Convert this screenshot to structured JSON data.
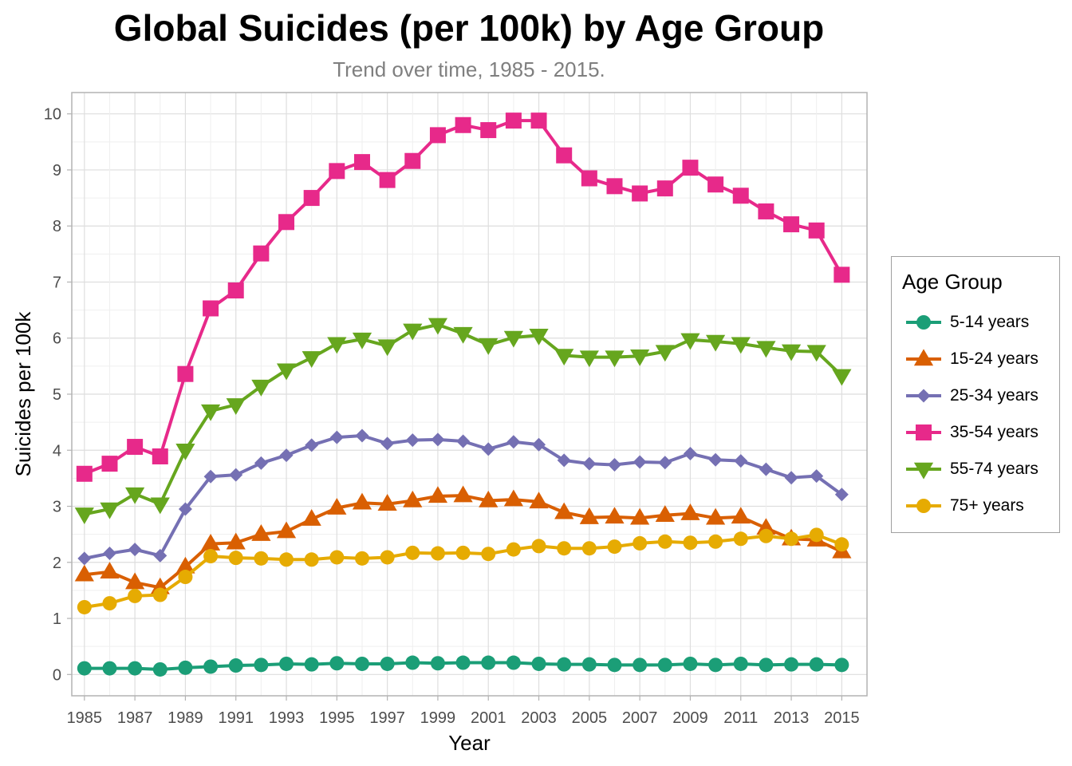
{
  "chart_data": {
    "type": "line",
    "title": "Global Suicides (per 100k) by Age Group",
    "subtitle": "Trend over time, 1985 - 2015.",
    "xlabel": "Year",
    "ylabel": "Suicides per 100k",
    "xlim": [
      1984.5,
      2016
    ],
    "ylim": [
      -0.38,
      10.38
    ],
    "x_ticks": [
      1985,
      1987,
      1989,
      1991,
      1993,
      1995,
      1997,
      1999,
      2001,
      2003,
      2005,
      2007,
      2009,
      2011,
      2013,
      2015
    ],
    "y_ticks": [
      0,
      1,
      2,
      3,
      4,
      5,
      6,
      7,
      8,
      9,
      10
    ],
    "grid": true,
    "legend": {
      "title": "Age Group",
      "position": "right"
    },
    "x": [
      1985,
      1986,
      1987,
      1988,
      1989,
      1990,
      1991,
      1992,
      1993,
      1994,
      1995,
      1996,
      1997,
      1998,
      1999,
      2000,
      2001,
      2002,
      2003,
      2004,
      2005,
      2006,
      2007,
      2008,
      2009,
      2010,
      2011,
      2012,
      2013,
      2014,
      2015
    ],
    "series": [
      {
        "name": "5-14 years",
        "color": "#1b9e77",
        "marker": "circle",
        "values": [
          0.11,
          0.11,
          0.11,
          0.09,
          0.12,
          0.14,
          0.16,
          0.17,
          0.19,
          0.18,
          0.2,
          0.19,
          0.19,
          0.21,
          0.2,
          0.21,
          0.21,
          0.21,
          0.19,
          0.18,
          0.18,
          0.17,
          0.17,
          0.17,
          0.19,
          0.17,
          0.19,
          0.17,
          0.18,
          0.18,
          0.17
        ]
      },
      {
        "name": "15-24 years",
        "color": "#d95f02",
        "marker": "triangle-up",
        "values": [
          1.78,
          1.83,
          1.64,
          1.55,
          1.92,
          2.33,
          2.35,
          2.5,
          2.55,
          2.77,
          2.97,
          3.06,
          3.04,
          3.1,
          3.18,
          3.19,
          3.1,
          3.12,
          3.08,
          2.89,
          2.8,
          2.81,
          2.79,
          2.84,
          2.87,
          2.79,
          2.81,
          2.61,
          2.42,
          2.4,
          2.19
        ]
      },
      {
        "name": "25-34 years",
        "color": "#7570b3",
        "marker": "diamond",
        "values": [
          2.07,
          2.16,
          2.23,
          2.12,
          2.95,
          3.53,
          3.56,
          3.77,
          3.91,
          4.09,
          4.23,
          4.26,
          4.12,
          4.18,
          4.19,
          4.16,
          4.02,
          4.15,
          4.1,
          3.82,
          3.76,
          3.74,
          3.79,
          3.78,
          3.94,
          3.83,
          3.81,
          3.66,
          3.51,
          3.54,
          3.21
        ]
      },
      {
        "name": "35-54 years",
        "color": "#e7298a",
        "marker": "square",
        "values": [
          3.58,
          3.76,
          4.06,
          3.89,
          5.36,
          6.53,
          6.85,
          7.51,
          8.07,
          8.5,
          8.98,
          9.14,
          8.82,
          9.16,
          9.62,
          9.8,
          9.71,
          9.88,
          9.88,
          9.26,
          8.85,
          8.71,
          8.58,
          8.67,
          9.04,
          8.74,
          8.54,
          8.26,
          8.03,
          7.92,
          7.13
        ]
      },
      {
        "name": "55-74 years",
        "color": "#66a61e",
        "marker": "triangle-down",
        "values": [
          2.86,
          2.95,
          3.22,
          3.04,
          4.0,
          4.7,
          4.81,
          5.14,
          5.43,
          5.65,
          5.9,
          5.98,
          5.86,
          6.14,
          6.24,
          6.08,
          5.88,
          6.01,
          6.05,
          5.69,
          5.66,
          5.66,
          5.68,
          5.76,
          5.97,
          5.94,
          5.9,
          5.83,
          5.77,
          5.76,
          5.33
        ]
      },
      {
        "name": "75+ years",
        "color": "#e6ab02",
        "marker": "circle",
        "values": [
          1.2,
          1.27,
          1.4,
          1.42,
          1.74,
          2.11,
          2.08,
          2.07,
          2.05,
          2.05,
          2.09,
          2.07,
          2.09,
          2.17,
          2.16,
          2.17,
          2.15,
          2.23,
          2.29,
          2.25,
          2.25,
          2.28,
          2.34,
          2.37,
          2.35,
          2.37,
          2.42,
          2.47,
          2.42,
          2.49,
          2.32
        ]
      }
    ]
  }
}
